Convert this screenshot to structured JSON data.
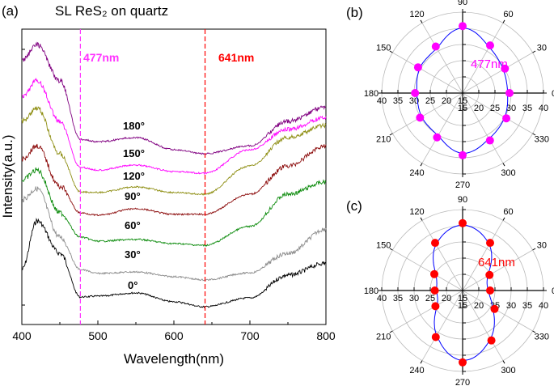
{
  "chart_data": [
    {
      "panel_label": "(a)",
      "type": "line",
      "title": "SL ReS₂ on quartz",
      "xlabel": "Wavelength(nm)",
      "ylabel": "Intensity(a.u.)",
      "xlim": [
        400,
        800
      ],
      "ylim": [
        0,
        100
      ],
      "xticks": [
        "400",
        "500",
        "600",
        "700",
        "800"
      ],
      "grid": false,
      "x": [
        400,
        420,
        450,
        477,
        500,
        550,
        600,
        640,
        700,
        750,
        800
      ],
      "series": [
        {
          "name": "0°",
          "color": "#000000",
          "values": [
            18.6,
            35.1,
            24.1,
            9.3,
            9.6,
            10.7,
            7.7,
            6.0,
            9.0,
            16.7,
            20.8
          ]
        },
        {
          "name": "30°",
          "color": "#8c8c8c",
          "values": [
            42.2,
            46.0,
            29.6,
            18.6,
            17.3,
            17.8,
            16.2,
            15.1,
            17.5,
            24.1,
            32.3
          ]
        },
        {
          "name": "60°",
          "color": "#0a8a0a",
          "values": [
            48.8,
            52.3,
            37.8,
            29.6,
            28.2,
            28.8,
            27.4,
            26.8,
            33.2,
            44.1,
            48.2
          ]
        },
        {
          "name": "90°",
          "color": "#8b0a0a",
          "values": [
            55.9,
            60.5,
            46.8,
            37.8,
            37.0,
            39.2,
            37.3,
            37.3,
            44.1,
            53.7,
            60.5
          ]
        },
        {
          "name": "120°",
          "color": "#8e8e12",
          "values": [
            68.8,
            73.4,
            57.8,
            44.9,
            44.7,
            46.6,
            44.7,
            44.1,
            53.7,
            63.3,
            67.4
          ]
        },
        {
          "name": "150°",
          "color": "#ff00ff",
          "values": [
            77.0,
            82.5,
            68.8,
            53.2,
            52.3,
            54.0,
            51.8,
            51.2,
            59.2,
            66.0,
            70.1
          ]
        },
        {
          "name": "180°",
          "color": "#800080",
          "values": [
            89.3,
            94.8,
            82.5,
            62.7,
            61.9,
            63.3,
            59.2,
            57.8,
            60.5,
            68.8,
            73.7
          ]
        }
      ],
      "annotations": [
        {
          "text": "477nm",
          "x": 477,
          "color": "#ff33ff"
        },
        {
          "text": "641nm",
          "x": 641,
          "color": "#ff0000"
        }
      ]
    },
    {
      "panel_label": "(b)",
      "type": "scatter",
      "subtype": "polar",
      "annotation": "477nm",
      "color": "#ff00ff",
      "fit_color": "#0000ff",
      "rlim": [
        15,
        40
      ],
      "rticks": [
        "15",
        "20",
        "25",
        "30",
        "35",
        "40"
      ],
      "angle_ticks": [
        "0",
        "30",
        "60",
        "90",
        "120",
        "150",
        "180",
        "210",
        "240",
        "270",
        "300",
        "330"
      ],
      "angles": [
        0,
        30,
        60,
        90,
        120,
        150,
        180,
        210,
        240,
        270,
        300,
        330
      ],
      "values": [
        29.5,
        30.1,
        32.0,
        35.7,
        31.6,
        30.9,
        29.7,
        30.2,
        30.8,
        34.2,
        31.9,
        30.6
      ]
    },
    {
      "panel_label": "(c)",
      "type": "scatter",
      "subtype": "polar",
      "annotation": "641nm",
      "color": "#ff0000",
      "fit_color": "#0000ff",
      "rlim": [
        15,
        40
      ],
      "rticks": [
        "15",
        "20",
        "25",
        "30",
        "35",
        "40"
      ],
      "angle_ticks": [
        "0",
        "30",
        "60",
        "90",
        "120",
        "150",
        "180",
        "210",
        "240",
        "270",
        "300",
        "330"
      ],
      "angles": [
        0,
        30,
        60,
        90,
        120,
        150,
        180,
        210,
        240,
        270,
        300,
        330
      ],
      "values": [
        23.5,
        24.6,
        32.0,
        35.8,
        32.0,
        25.1,
        23.6,
        24.7,
        31.6,
        37.2,
        32.8,
        26.4
      ]
    }
  ]
}
